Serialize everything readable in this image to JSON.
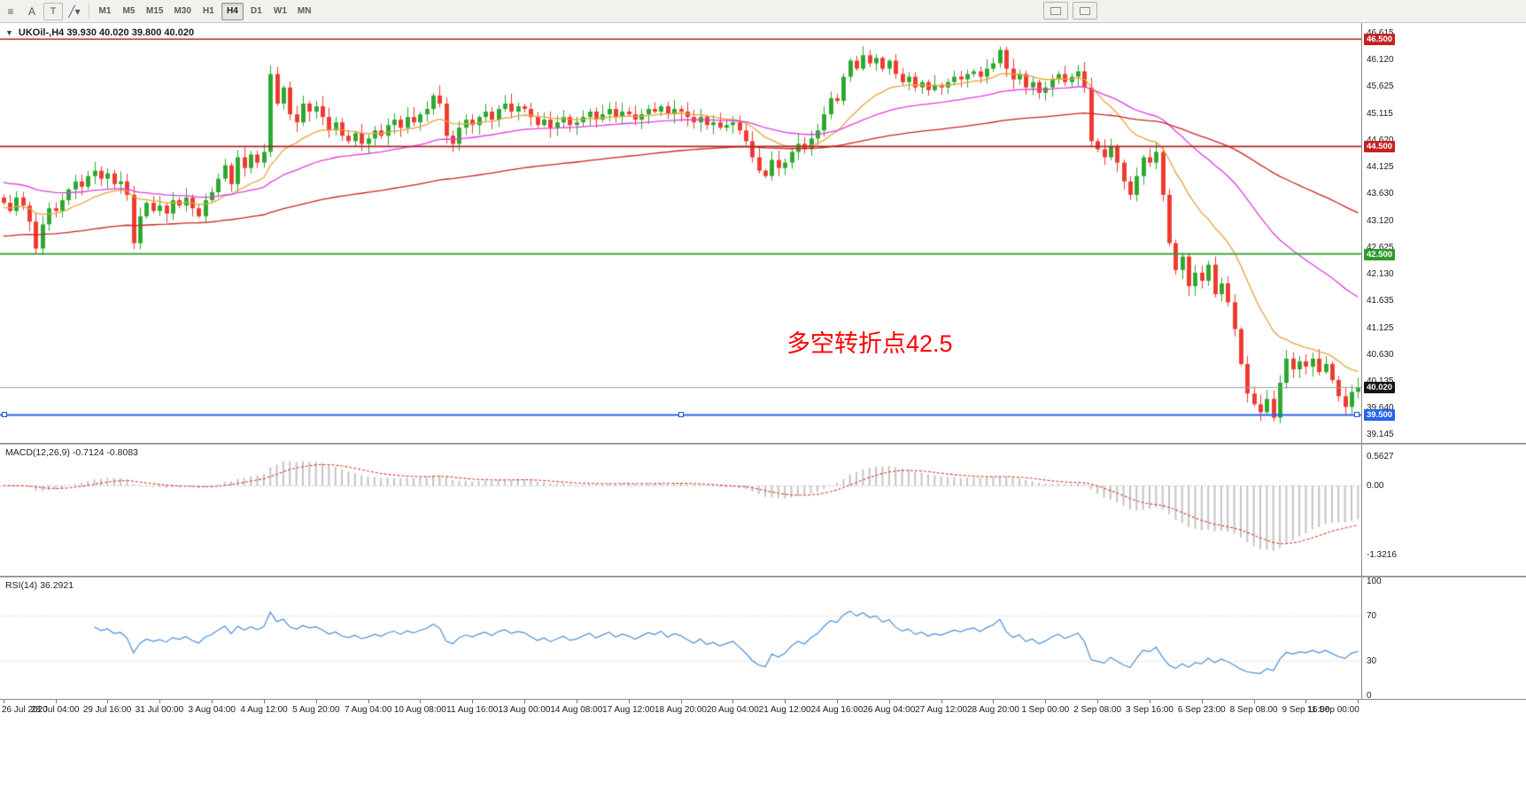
{
  "toolbar": {
    "icons": {
      "menu": "≡",
      "cursor": "A",
      "text_tool": "T",
      "line_tool": "╱",
      "line_tool_caret": "▾"
    },
    "timeframes": [
      {
        "label": "M1"
      },
      {
        "label": "M5"
      },
      {
        "label": "M15"
      },
      {
        "label": "M30"
      },
      {
        "label": "H1"
      },
      {
        "label": "H4",
        "selected": true
      },
      {
        "label": "D1"
      },
      {
        "label": "W1"
      },
      {
        "label": "MN"
      }
    ]
  },
  "chart": {
    "expander": "▼",
    "title": "UKOil-,H4  39.930 40.020 39.800 40.020"
  },
  "chart_data": {
    "type": "candlestick",
    "symbol": "UKOil-",
    "timeframe": "H4",
    "ohlc_text": "39.930 40.020 39.800 40.020",
    "annotation": {
      "text": "多空转折点42.5",
      "color": "#ff0000",
      "price_near": 41.3
    },
    "up_color": "#2aa82e",
    "down_color": "#ef392e",
    "price_range": {
      "min": 38.98,
      "max": 46.8
    },
    "price_ticks": [
      46.615,
      46.12,
      45.625,
      45.115,
      44.62,
      44.125,
      43.63,
      43.12,
      42.625,
      42.13,
      41.635,
      41.125,
      40.63,
      40.135,
      39.64,
      39.145
    ],
    "hlines": [
      {
        "value": 46.5,
        "label": "46.500",
        "color": "#b22222",
        "badge": "#c62121",
        "width": 1.6
      },
      {
        "value": 44.5,
        "label": "44.500",
        "color": "#b22222",
        "badge": "#c62121",
        "width": 1.6
      },
      {
        "value": 42.5,
        "label": "42.500",
        "color": "#2d9b2d",
        "badge": "#2d9b2d",
        "width": 1.8
      },
      {
        "value": 39.5,
        "label": "39.500",
        "color": "#2563eb",
        "badge": "#2563eb",
        "width": 2,
        "selected": true
      }
    ],
    "bid_line": {
      "value": 40.02,
      "label": "40.020",
      "line_color": "#9aa0a6",
      "badge": "#151515"
    },
    "first_open": 43.55,
    "closes": [
      43.45,
      43.3,
      43.55,
      43.4,
      43.1,
      42.6,
      43.05,
      43.35,
      43.3,
      43.5,
      43.7,
      43.85,
      43.75,
      43.95,
      44.05,
      43.9,
      44.0,
      43.8,
      43.85,
      43.6,
      42.7,
      43.2,
      43.45,
      43.3,
      43.4,
      43.25,
      43.5,
      43.4,
      43.55,
      43.35,
      43.2,
      43.5,
      43.65,
      43.9,
      44.15,
      43.8,
      44.3,
      44.1,
      44.35,
      44.2,
      44.4,
      45.85,
      45.3,
      45.6,
      45.1,
      44.95,
      45.3,
      45.15,
      45.25,
      45.05,
      44.8,
      44.95,
      44.7,
      44.6,
      44.75,
      44.55,
      44.65,
      44.8,
      44.7,
      44.9,
      45.0,
      44.85,
      45.05,
      44.95,
      45.1,
      45.2,
      45.45,
      45.3,
      44.7,
      44.55,
      44.85,
      45.0,
      44.9,
      45.05,
      45.15,
      45.0,
      45.2,
      45.3,
      45.15,
      45.25,
      45.2,
      45.05,
      44.9,
      45.0,
      44.85,
      44.95,
      45.05,
      44.9,
      44.95,
      45.05,
      45.15,
      45.0,
      45.1,
      45.2,
      45.05,
      45.15,
      45.1,
      45.0,
      45.1,
      45.2,
      45.15,
      45.25,
      45.1,
      45.2,
      45.15,
      45.05,
      44.95,
      45.05,
      44.9,
      44.95,
      44.85,
      44.9,
      44.95,
      44.8,
      44.6,
      44.3,
      44.05,
      43.95,
      44.25,
      44.1,
      44.2,
      44.4,
      44.55,
      44.45,
      44.65,
      44.8,
      45.1,
      45.4,
      45.35,
      45.8,
      46.1,
      45.95,
      46.2,
      46.05,
      46.15,
      45.95,
      46.1,
      45.85,
      45.7,
      45.8,
      45.6,
      45.7,
      45.55,
      45.65,
      45.6,
      45.7,
      45.8,
      45.75,
      45.85,
      45.9,
      45.8,
      45.95,
      46.05,
      46.3,
      45.95,
      45.75,
      45.85,
      45.6,
      45.7,
      45.5,
      45.6,
      45.75,
      45.85,
      45.7,
      45.8,
      45.9,
      45.6,
      44.6,
      44.45,
      44.3,
      44.5,
      44.2,
      43.85,
      43.6,
      43.95,
      44.3,
      44.2,
      44.4,
      43.6,
      42.7,
      42.2,
      42.45,
      41.9,
      42.15,
      42.0,
      42.3,
      41.75,
      41.95,
      41.6,
      41.1,
      40.45,
      39.9,
      39.7,
      39.55,
      39.8,
      39.45,
      40.1,
      40.55,
      40.35,
      40.5,
      40.4,
      40.55,
      40.3,
      40.45,
      40.15,
      39.85,
      39.65,
      39.93,
      40.02
    ],
    "moving_averages": [
      {
        "name": "MA fast",
        "period": 16,
        "color": "#e8a33d",
        "init": 43.35
      },
      {
        "name": "MA mid",
        "period": 45,
        "color": "#df3ddf",
        "init": 43.85
      },
      {
        "name": "MA slow",
        "period": 120,
        "color": "#cc2222",
        "init": 42.82
      }
    ],
    "macd": {
      "label": "MACD(12,26,9)",
      "values_text": "-0.7124 -0.8083",
      "fast": 12,
      "slow": 26,
      "signal": 9,
      "scale_min": -1.62,
      "scale_max": 0.68,
      "axis_labels": [
        {
          "v": 0.5627,
          "t": "0.5627"
        },
        {
          "v": 0,
          "t": "0.00"
        },
        {
          "v": -1.3216,
          "t": "-1.3216"
        }
      ],
      "hist_color": "#c4c4c4",
      "signal_color": "#e23b2f"
    },
    "rsi": {
      "label": "RSI(14)",
      "value_text": "36.2921",
      "period": 14,
      "line_color": "#4a90d8",
      "levels": [
        {
          "v": 100,
          "t": "100"
        },
        {
          "v": 70,
          "t": "70",
          "dashed": true
        },
        {
          "v": 30,
          "t": "30",
          "dashed": true
        },
        {
          "v": 0,
          "t": "0"
        }
      ]
    },
    "x_labels": [
      {
        "i": 0,
        "t": "26 Jul 2020"
      },
      {
        "i": 8,
        "t": "28 Jul 04:00"
      },
      {
        "i": 16,
        "t": "29 Jul 16:00"
      },
      {
        "i": 24,
        "t": "31 Jul 00:00"
      },
      {
        "i": 32,
        "t": "3 Aug 04:00"
      },
      {
        "i": 40,
        "t": "4 Aug 12:00"
      },
      {
        "i": 48,
        "t": "5 Aug 20:00"
      },
      {
        "i": 56,
        "t": "7 Aug 04:00"
      },
      {
        "i": 64,
        "t": "10 Aug 08:00"
      },
      {
        "i": 72,
        "t": "11 Aug 16:00"
      },
      {
        "i": 80,
        "t": "13 Aug 00:00"
      },
      {
        "i": 88,
        "t": "14 Aug 08:00"
      },
      {
        "i": 96,
        "t": "17 Aug 12:00"
      },
      {
        "i": 104,
        "t": "18 Aug 20:00"
      },
      {
        "i": 112,
        "t": "20 Aug 04:00"
      },
      {
        "i": 120,
        "t": "21 Aug 12:00"
      },
      {
        "i": 128,
        "t": "24 Aug 16:00"
      },
      {
        "i": 136,
        "t": "26 Aug 04:00"
      },
      {
        "i": 144,
        "t": "27 Aug 12:00"
      },
      {
        "i": 152,
        "t": "28 Aug 20:00"
      },
      {
        "i": 160,
        "t": "1 Sep 00:00"
      },
      {
        "i": 168,
        "t": "2 Sep 08:00"
      },
      {
        "i": 176,
        "t": "3 Sep 16:00"
      },
      {
        "i": 184,
        "t": "6 Sep 23:00"
      },
      {
        "i": 192,
        "t": "8 Sep 08:00"
      },
      {
        "i": 200,
        "t": "9 Sep 16:00"
      },
      {
        "i": 208,
        "t": "11 Sep 00:00"
      }
    ]
  }
}
